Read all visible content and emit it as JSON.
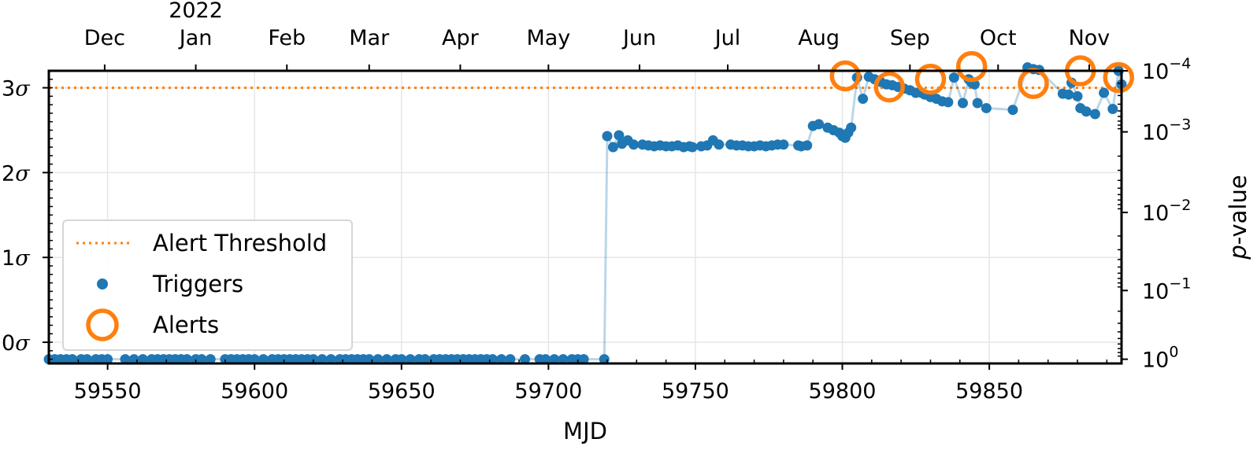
{
  "chart_data": {
    "type": "scatter",
    "xlabel": "MJD",
    "x_range": [
      59530,
      59895
    ],
    "x_ticks": [
      59550,
      59600,
      59650,
      59700,
      59750,
      59800,
      59850
    ],
    "top_axis": {
      "year_label": "2022",
      "year_label_month": "Jan",
      "months": [
        {
          "label": "Dec",
          "mjd": 59549
        },
        {
          "label": "Jan",
          "mjd": 59580
        },
        {
          "label": "Feb",
          "mjd": 59611
        },
        {
          "label": "Mar",
          "mjd": 59639
        },
        {
          "label": "Apr",
          "mjd": 59670
        },
        {
          "label": "May",
          "mjd": 59700
        },
        {
          "label": "Jun",
          "mjd": 59731
        },
        {
          "label": "Jul",
          "mjd": 59761
        },
        {
          "label": "Aug",
          "mjd": 59792
        },
        {
          "label": "Sep",
          "mjd": 59823
        },
        {
          "label": "Oct",
          "mjd": 59853
        },
        {
          "label": "Nov",
          "mjd": 59884
        }
      ]
    },
    "left_axis": {
      "unit": "sigma",
      "ylim": [
        -0.25,
        3.2
      ],
      "ticks": [
        {
          "value": 0,
          "label": "0σ"
        },
        {
          "value": 1,
          "label": "1σ"
        },
        {
          "value": 2,
          "label": "2σ"
        },
        {
          "value": 3,
          "label": "3σ"
        }
      ]
    },
    "right_axis": {
      "label": "p-value",
      "label_italic_part": "p",
      "label_rest": "-value",
      "scale": "log",
      "ticks": [
        {
          "base": "10",
          "exp": "0",
          "pvalue": 1
        },
        {
          "base": "10",
          "exp": "−1",
          "pvalue": 0.1
        },
        {
          "base": "10",
          "exp": "−2",
          "pvalue": 0.01
        },
        {
          "base": "10",
          "exp": "−3",
          "pvalue": 0.001
        },
        {
          "base": "10",
          "exp": "−4",
          "pvalue": 0.0001
        }
      ]
    },
    "threshold": {
      "name": "Alert Threshold",
      "sigma": 3.0
    },
    "grid": true,
    "legend_position": "lower-left",
    "series": [
      {
        "name": "Triggers",
        "color": "#1f77b4",
        "x": [
          59530,
          59532,
          59534,
          59536,
          59538,
          59541,
          59543,
          59546,
          59548,
          59550,
          59556,
          59559,
          59562,
          59565,
          59567,
          59569,
          59571,
          59573,
          59575,
          59577,
          59580,
          59582,
          59585,
          59590,
          59592,
          59594,
          59596,
          59598,
          59600,
          59603,
          59606,
          59608,
          59610,
          59612,
          59614,
          59616,
          59618,
          59620,
          59623,
          59626,
          59629,
          59631,
          59633,
          59635,
          59637,
          59639,
          59642,
          59645,
          59648,
          59650,
          59653,
          59656,
          59658,
          59661,
          59663,
          59665,
          59667,
          59669,
          59671,
          59673,
          59675,
          59677,
          59679,
          59681,
          59684,
          59687,
          59692,
          59697,
          59699,
          59702,
          59705,
          59708,
          59710,
          59712,
          59719,
          59720,
          59722,
          59724,
          59725,
          59727,
          59729,
          59732,
          59734,
          59736,
          59738,
          59740,
          59742,
          59744,
          59746,
          59748,
          59749,
          59752,
          59754,
          59756,
          59758,
          59762,
          59764,
          59766,
          59768,
          59770,
          59772,
          59774,
          59776,
          59778,
          59780,
          59785,
          59786,
          59788,
          59790,
          59792,
          59795,
          59797,
          59799,
          59800,
          59801,
          59801,
          59802,
          59803,
          59805,
          59807,
          59809,
          59811,
          59813,
          59815,
          59817,
          59819,
          59821,
          59823,
          59825,
          59827,
          59828,
          59830,
          59832,
          59834,
          59836,
          59838,
          59841,
          59843,
          59844,
          59845,
          59846,
          59849,
          59858,
          59863,
          59865,
          59867,
          59875,
          59877,
          59878,
          59880,
          59881,
          59883,
          59886,
          59889,
          59892,
          59894,
          59895
        ],
        "sigma": [
          -0.2,
          -0.2,
          -0.2,
          -0.2,
          -0.2,
          -0.2,
          -0.2,
          -0.2,
          -0.2,
          -0.2,
          -0.2,
          -0.2,
          -0.2,
          -0.2,
          -0.2,
          -0.2,
          -0.2,
          -0.2,
          -0.2,
          -0.2,
          -0.2,
          -0.2,
          -0.2,
          -0.2,
          -0.2,
          -0.2,
          -0.2,
          -0.2,
          -0.2,
          -0.2,
          -0.2,
          -0.2,
          -0.2,
          -0.2,
          -0.2,
          -0.2,
          -0.2,
          -0.2,
          -0.2,
          -0.2,
          -0.2,
          -0.2,
          -0.2,
          -0.2,
          -0.2,
          -0.2,
          -0.2,
          -0.2,
          -0.2,
          -0.2,
          -0.2,
          -0.2,
          -0.2,
          -0.2,
          -0.2,
          -0.2,
          -0.2,
          -0.2,
          -0.2,
          -0.2,
          -0.2,
          -0.2,
          -0.2,
          -0.2,
          -0.2,
          -0.2,
          -0.2,
          -0.2,
          -0.2,
          -0.2,
          -0.2,
          -0.2,
          -0.2,
          -0.2,
          -0.2,
          2.43,
          2.3,
          2.44,
          2.34,
          2.38,
          2.33,
          2.33,
          2.32,
          2.31,
          2.32,
          2.31,
          2.31,
          2.32,
          2.3,
          2.31,
          2.3,
          2.31,
          2.32,
          2.38,
          2.33,
          2.33,
          2.32,
          2.32,
          2.31,
          2.31,
          2.32,
          2.31,
          2.32,
          2.33,
          2.33,
          2.32,
          2.31,
          2.32,
          2.55,
          2.57,
          2.53,
          2.5,
          2.47,
          2.43,
          2.42,
          2.41,
          2.47,
          2.53,
          3.12,
          2.87,
          3.13,
          3.1,
          3.07,
          3.04,
          3.03,
          3.01,
          2.99,
          2.97,
          2.94,
          2.94,
          2.92,
          2.89,
          2.87,
          2.84,
          2.83,
          3.12,
          2.82,
          3.1,
          3.06,
          3.04,
          2.82,
          2.76,
          2.74,
          3.24,
          3.22,
          3.21,
          2.93,
          2.92,
          3.06,
          2.9,
          2.76,
          2.72,
          2.69,
          2.94,
          2.75,
          3.2,
          3.04,
          3.13,
          3.11,
          2.88,
          3.12
        ],
        "alert_sigma": [
          3.14,
          3.01,
          3.1,
          3.25,
          3.05,
          3.2,
          3.12
        ],
        "alert_mjd": [
          59801,
          59816,
          59830,
          59844,
          59865,
          59881,
          59894
        ]
      },
      {
        "name": "Alerts",
        "color": "#ff7f0e",
        "x": [
          59801,
          59816,
          59830,
          59844,
          59865,
          59881,
          59894
        ],
        "sigma": [
          3.14,
          3.01,
          3.1,
          3.25,
          3.05,
          3.2,
          3.12
        ]
      }
    ]
  },
  "legend": {
    "items": [
      {
        "label": "Alert Threshold",
        "kind": "dotted-line",
        "color": "#ff7f0e"
      },
      {
        "label": "Triggers",
        "kind": "dot",
        "color": "#1f77b4"
      },
      {
        "label": "Alerts",
        "kind": "ring",
        "color": "#ff7f0e"
      }
    ]
  }
}
